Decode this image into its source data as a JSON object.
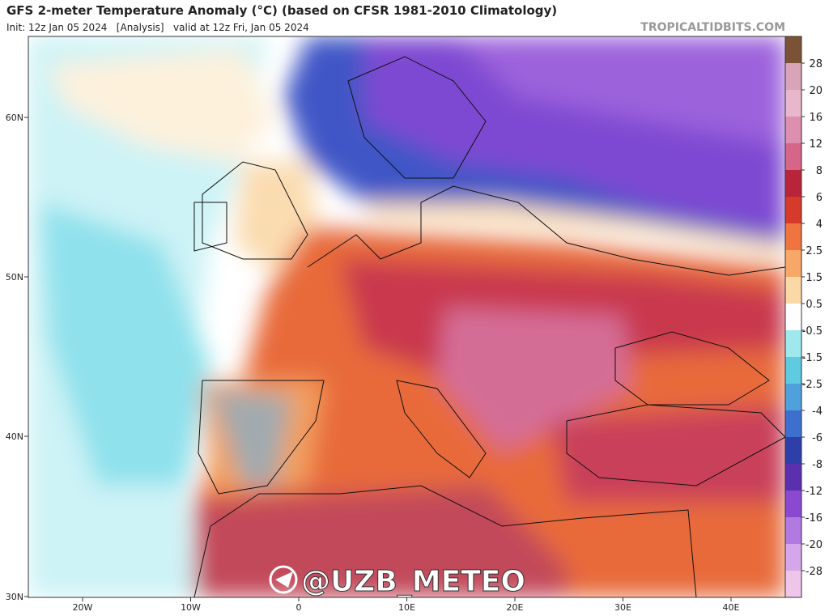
{
  "header": {
    "title": "GFS 2-meter Temperature Anomaly (°C) (based on CFSR 1981-2010 Climatology)",
    "subtitle": "Init: 12z Jan 05 2024   [Analysis]   valid at 12z Fri, Jan 05 2024",
    "source": "TROPICALTIDBITS.COM"
  },
  "latitude_labels": [
    "60N",
    "50N",
    "40N",
    "30N"
  ],
  "longitude_labels": [
    "20W",
    "10W",
    "0",
    "10E",
    "20E",
    "30E",
    "40E"
  ],
  "colorbar": {
    "labels": [
      "28",
      "20",
      "16",
      "12",
      "8",
      "6",
      "4",
      "2.5",
      "1.5",
      "0.5",
      "-0.5",
      "-1.5",
      "-2.5",
      "-4",
      "-6",
      "-8",
      "-12",
      "-16",
      "-20",
      "-28"
    ],
    "colors": [
      "#7b5236",
      "#d9a3b8",
      "#e8b7cc",
      "#dc8fae",
      "#d5668a",
      "#b8243a",
      "#d63a2a",
      "#ef7440",
      "#f7a868",
      "#fbd9a6",
      "#ffffff",
      "#9fe9ec",
      "#5fcbe0",
      "#4fa1dc",
      "#3d6fcf",
      "#2d3fa8",
      "#5a2fb0",
      "#8a49d0",
      "#b07ae0",
      "#d6a6ea",
      "#efc6ea"
    ]
  },
  "watermark": "@UZB_METEO"
}
